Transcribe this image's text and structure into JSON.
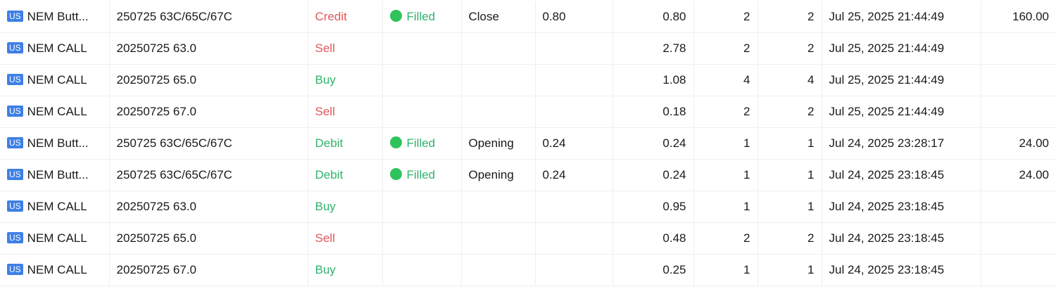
{
  "colors": {
    "credit": "#e0575b",
    "sell": "#e0575b",
    "debit": "#2fb36b",
    "buy": "#2fb36b",
    "filled": "#2fb36b",
    "market_badge": "#3d7fe6"
  },
  "rows": [
    {
      "market": "US",
      "symbol": "NEM Butt...",
      "contract": "250725 63C/65C/67C",
      "side": "Credit",
      "side_type": "sell",
      "status": "Filled",
      "position": "Close",
      "order_price": "0.80",
      "fill_price": "0.80",
      "qty": "2",
      "filled_qty": "2",
      "time": "Jul 25, 2025 21:44:49",
      "amount": "160.00"
    },
    {
      "market": "US",
      "symbol": "NEM CALL",
      "contract": "20250725 63.0",
      "side": "Sell",
      "side_type": "sell",
      "status": "",
      "position": "",
      "order_price": "",
      "fill_price": "2.78",
      "qty": "2",
      "filled_qty": "2",
      "time": "Jul 25, 2025 21:44:49",
      "amount": ""
    },
    {
      "market": "US",
      "symbol": "NEM CALL",
      "contract": "20250725 65.0",
      "side": "Buy",
      "side_type": "buy",
      "status": "",
      "position": "",
      "order_price": "",
      "fill_price": "1.08",
      "qty": "4",
      "filled_qty": "4",
      "time": "Jul 25, 2025 21:44:49",
      "amount": ""
    },
    {
      "market": "US",
      "symbol": "NEM CALL",
      "contract": "20250725 67.0",
      "side": "Sell",
      "side_type": "sell",
      "status": "",
      "position": "",
      "order_price": "",
      "fill_price": "0.18",
      "qty": "2",
      "filled_qty": "2",
      "time": "Jul 25, 2025 21:44:49",
      "amount": ""
    },
    {
      "market": "US",
      "symbol": "NEM Butt...",
      "contract": "250725 63C/65C/67C",
      "side": "Debit",
      "side_type": "buy",
      "status": "Filled",
      "position": "Opening",
      "order_price": "0.24",
      "fill_price": "0.24",
      "qty": "1",
      "filled_qty": "1",
      "time": "Jul 24, 2025 23:28:17",
      "amount": "24.00"
    },
    {
      "market": "US",
      "symbol": "NEM Butt...",
      "contract": "250725 63C/65C/67C",
      "side": "Debit",
      "side_type": "buy",
      "status": "Filled",
      "position": "Opening",
      "order_price": "0.24",
      "fill_price": "0.24",
      "qty": "1",
      "filled_qty": "1",
      "time": "Jul 24, 2025 23:18:45",
      "amount": "24.00"
    },
    {
      "market": "US",
      "symbol": "NEM CALL",
      "contract": "20250725 63.0",
      "side": "Buy",
      "side_type": "buy",
      "status": "",
      "position": "",
      "order_price": "",
      "fill_price": "0.95",
      "qty": "1",
      "filled_qty": "1",
      "time": "Jul 24, 2025 23:18:45",
      "amount": ""
    },
    {
      "market": "US",
      "symbol": "NEM CALL",
      "contract": "20250725 65.0",
      "side": "Sell",
      "side_type": "sell",
      "status": "",
      "position": "",
      "order_price": "",
      "fill_price": "0.48",
      "qty": "2",
      "filled_qty": "2",
      "time": "Jul 24, 2025 23:18:45",
      "amount": ""
    },
    {
      "market": "US",
      "symbol": "NEM CALL",
      "contract": "20250725 67.0",
      "side": "Buy",
      "side_type": "buy",
      "status": "",
      "position": "",
      "order_price": "",
      "fill_price": "0.25",
      "qty": "1",
      "filled_qty": "1",
      "time": "Jul 24, 2025 23:18:45",
      "amount": ""
    }
  ]
}
